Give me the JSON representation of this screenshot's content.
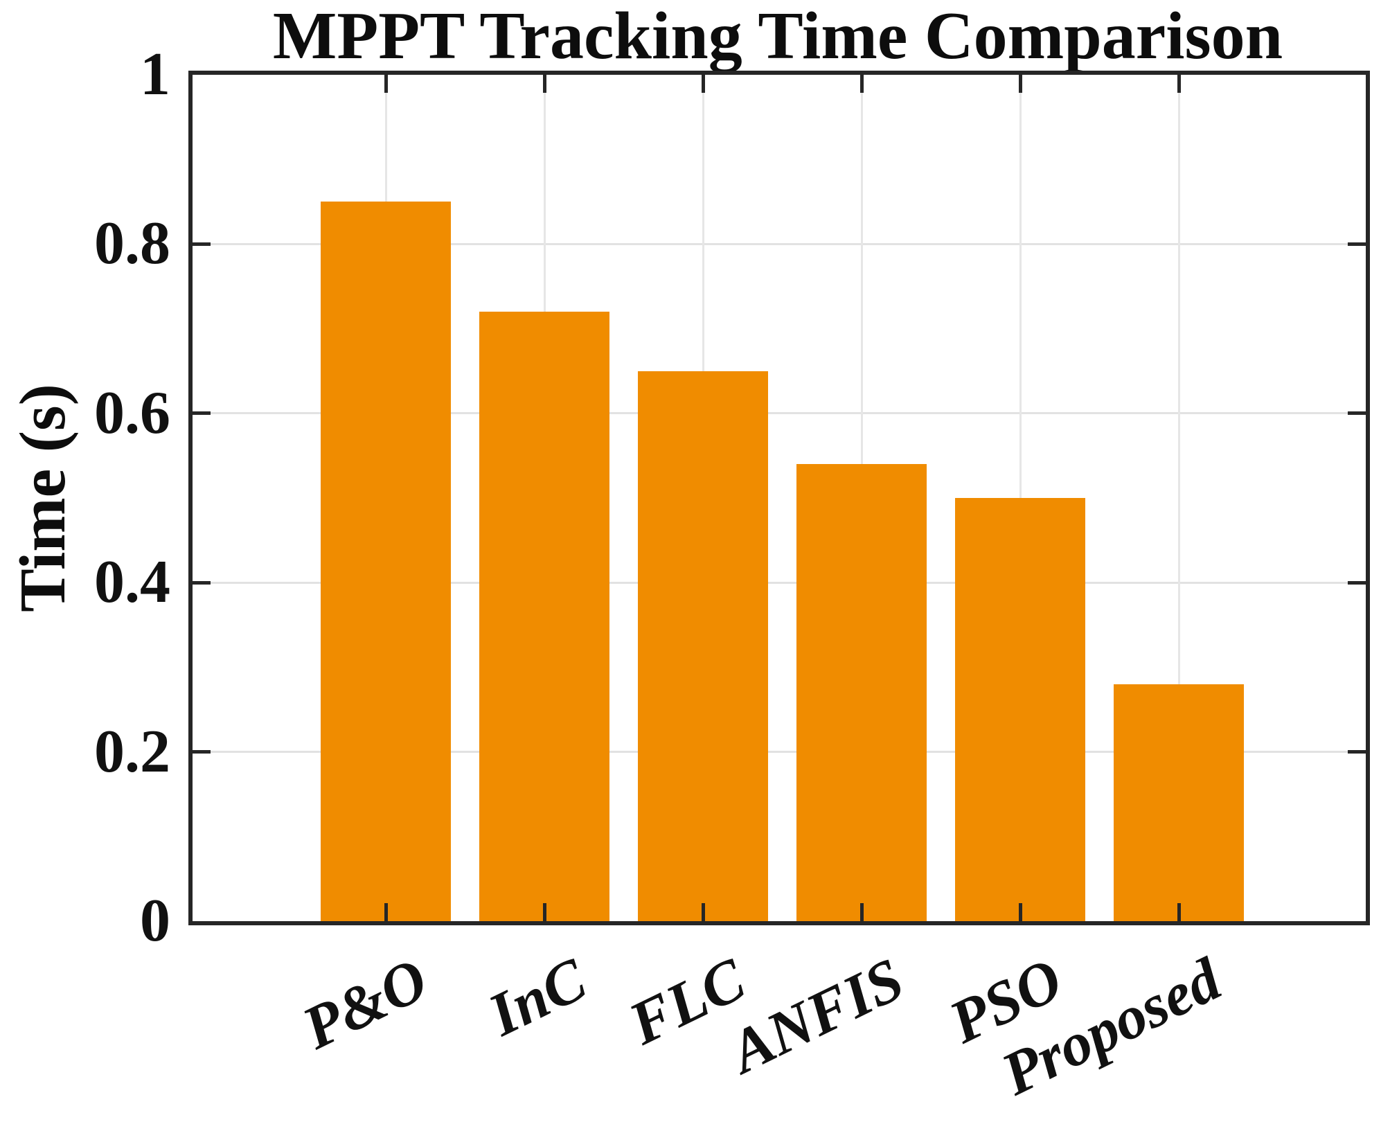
{
  "chart_data": {
    "type": "bar",
    "title": "MPPT Tracking Time Comparison",
    "xlabel": "",
    "ylabel": "Time (s)",
    "categories": [
      "P&O",
      "InC",
      "FLC",
      "ANFIS",
      "PSO",
      "Proposed"
    ],
    "values": [
      0.85,
      0.72,
      0.65,
      0.54,
      0.5,
      0.28
    ],
    "ylim": [
      0,
      1
    ],
    "yticks": [
      0,
      0.2,
      0.4,
      0.6,
      0.8,
      1
    ],
    "ytick_labels": [
      "0",
      "0.2",
      "0.4",
      "0.6",
      "0.8",
      "1"
    ],
    "grid": true,
    "grid_axes": "both",
    "legend": "none",
    "tick_direction": "in",
    "frame": "box",
    "colors": {
      "bar": "#F08C00",
      "axis": "#262626",
      "grid": "#E2E2E2",
      "text": "#111111",
      "background": "#FFFFFF"
    }
  }
}
